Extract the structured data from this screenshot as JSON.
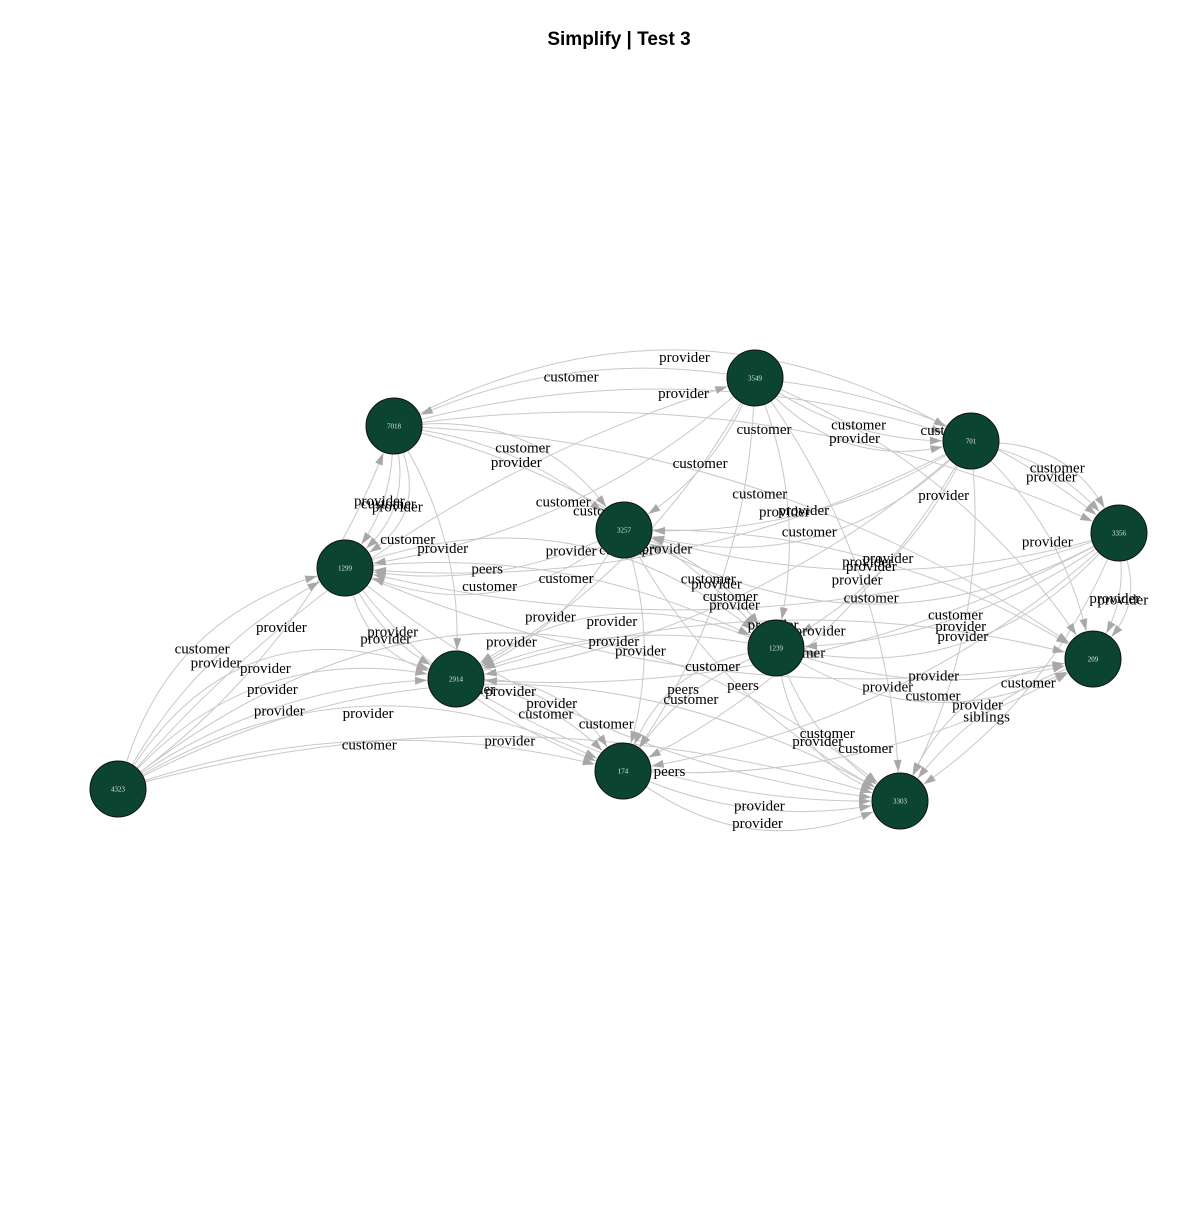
{
  "title": "Simplify | Test 3",
  "colors": {
    "node_fill": "#0b4430",
    "node_stroke": "#111111",
    "node_text": "#dde8df",
    "edge": "#c8c8c8",
    "arrow": "#a8a8a8"
  },
  "nodes": [
    {
      "id": "3549"
    },
    {
      "id": "7018"
    },
    {
      "id": "701"
    },
    {
      "id": "3356"
    },
    {
      "id": "3257"
    },
    {
      "id": "1299"
    },
    {
      "id": "1239"
    },
    {
      "id": "209"
    },
    {
      "id": "2914"
    },
    {
      "id": "174"
    },
    {
      "id": "3303"
    },
    {
      "id": "4323"
    }
  ],
  "edges": [
    {
      "from": "4323",
      "to": "3549",
      "label": "customer"
    },
    {
      "from": "3549",
      "to": "7018",
      "label": "customer"
    },
    {
      "from": "3549",
      "to": "701",
      "label": "customer"
    },
    {
      "from": "3549",
      "to": "701",
      "label": "provider"
    },
    {
      "from": "4323",
      "to": "7018",
      "label": "provider"
    },
    {
      "from": "4323",
      "to": "1299",
      "label": "provider"
    },
    {
      "from": "4323",
      "to": "1299",
      "label": "customer"
    },
    {
      "from": "4323",
      "to": "2914",
      "label": "provider"
    },
    {
      "from": "4323",
      "to": "2914",
      "label": "provider"
    },
    {
      "from": "4323",
      "to": "2914",
      "label": "provider"
    },
    {
      "from": "4323",
      "to": "174",
      "label": "customer"
    },
    {
      "from": "4323",
      "to": "174",
      "label": "provider"
    },
    {
      "from": "4323",
      "to": "3303",
      "label": "provider"
    },
    {
      "from": "4323",
      "to": "3303",
      "label": "provider"
    },
    {
      "from": "4323",
      "to": "3303",
      "label": "provider"
    },
    {
      "from": "7018",
      "to": "1299",
      "label": "provider"
    },
    {
      "from": "7018",
      "to": "1299",
      "label": "customer"
    },
    {
      "from": "7018",
      "to": "1299",
      "label": "provider"
    },
    {
      "from": "7018",
      "to": "3257",
      "label": "provider"
    },
    {
      "from": "7018",
      "to": "3257",
      "label": "customer"
    },
    {
      "from": "7018",
      "to": "701",
      "label": "provider"
    },
    {
      "from": "7018",
      "to": "701",
      "label": "provider"
    },
    {
      "from": "7018",
      "to": "1239",
      "label": "customer"
    },
    {
      "from": "7018",
      "to": "3356",
      "label": "customer"
    },
    {
      "from": "7018",
      "to": "2914",
      "label": "provider"
    },
    {
      "from": "7018",
      "to": "209",
      "label": "customer"
    },
    {
      "from": "3549",
      "to": "3257",
      "label": "customer"
    },
    {
      "from": "3549",
      "to": "1299",
      "label": "customer"
    },
    {
      "from": "3549",
      "to": "1239",
      "label": "provider"
    },
    {
      "from": "3549",
      "to": "2914",
      "label": "customer"
    },
    {
      "from": "3549",
      "to": "3356",
      "label": "customer"
    },
    {
      "from": "3549",
      "to": "174",
      "label": "provider"
    },
    {
      "from": "3549",
      "to": "209",
      "label": "provider"
    },
    {
      "from": "3549",
      "to": "3303",
      "label": "provider"
    },
    {
      "from": "701",
      "to": "3257",
      "label": "provider"
    },
    {
      "from": "701",
      "to": "3257",
      "label": "customer"
    },
    {
      "from": "701",
      "to": "1299",
      "label": "provider"
    },
    {
      "from": "701",
      "to": "1239",
      "label": "provider"
    },
    {
      "from": "701",
      "to": "2914",
      "label": "customer"
    },
    {
      "from": "701",
      "to": "3356",
      "label": "provider"
    },
    {
      "from": "701",
      "to": "3356",
      "label": "customer"
    },
    {
      "from": "701",
      "to": "209",
      "label": "provider"
    },
    {
      "from": "701",
      "to": "174",
      "label": "provider"
    },
    {
      "from": "701",
      "to": "3303",
      "label": "provider"
    },
    {
      "from": "3356",
      "to": "3257",
      "label": "provider"
    },
    {
      "from": "3356",
      "to": "3257",
      "label": "customer"
    },
    {
      "from": "3356",
      "to": "1299",
      "label": "provider"
    },
    {
      "from": "3356",
      "to": "1239",
      "label": "customer"
    },
    {
      "from": "3356",
      "to": "1239",
      "label": "provider"
    },
    {
      "from": "3356",
      "to": "209",
      "label": "provider"
    },
    {
      "from": "3356",
      "to": "209",
      "label": "provider"
    },
    {
      "from": "3356",
      "to": "2914",
      "label": "customer"
    },
    {
      "from": "3356",
      "to": "174",
      "label": "provider"
    },
    {
      "from": "3356",
      "to": "3303",
      "label": "customer"
    },
    {
      "from": "3257",
      "to": "1299",
      "label": "peers"
    },
    {
      "from": "3257",
      "to": "1299",
      "label": "customer"
    },
    {
      "from": "3257",
      "to": "2914",
      "label": "provider"
    },
    {
      "from": "3257",
      "to": "1239",
      "label": "customer"
    },
    {
      "from": "3257",
      "to": "174",
      "label": "provider"
    },
    {
      "from": "3257",
      "to": "209",
      "label": "provider"
    },
    {
      "from": "3257",
      "to": "3303",
      "label": "peers"
    },
    {
      "from": "1299",
      "to": "2914",
      "label": "provider"
    },
    {
      "from": "1299",
      "to": "2914",
      "label": "provider"
    },
    {
      "from": "1299",
      "to": "1239",
      "label": "customer"
    },
    {
      "from": "1299",
      "to": "1239",
      "label": "provider"
    },
    {
      "from": "1299",
      "to": "174",
      "label": "provider"
    },
    {
      "from": "1299",
      "to": "209",
      "label": "customer"
    },
    {
      "from": "1299",
      "to": "3303",
      "label": "customer"
    },
    {
      "from": "1239",
      "to": "2914",
      "label": "provider"
    },
    {
      "from": "1239",
      "to": "2914",
      "label": "provider"
    },
    {
      "from": "1239",
      "to": "174",
      "label": "customer"
    },
    {
      "from": "1239",
      "to": "174",
      "label": "peers"
    },
    {
      "from": "1239",
      "to": "209",
      "label": "provider"
    },
    {
      "from": "1239",
      "to": "209",
      "label": "customer"
    },
    {
      "from": "1239",
      "to": "3303",
      "label": "customer"
    },
    {
      "from": "1239",
      "to": "3303",
      "label": "provider"
    },
    {
      "from": "2914",
      "to": "174",
      "label": "customer"
    },
    {
      "from": "2914",
      "to": "174",
      "label": "provider"
    },
    {
      "from": "2914",
      "to": "3303",
      "label": "peers"
    },
    {
      "from": "2914",
      "to": "209",
      "label": "provider"
    },
    {
      "from": "174",
      "to": "3303",
      "label": "provider"
    },
    {
      "from": "174",
      "to": "3303",
      "label": "provider"
    },
    {
      "from": "174",
      "to": "209",
      "label": "customer"
    },
    {
      "from": "209",
      "to": "3303",
      "label": "siblings"
    },
    {
      "from": "209",
      "to": "3303",
      "label": "provider"
    }
  ]
}
